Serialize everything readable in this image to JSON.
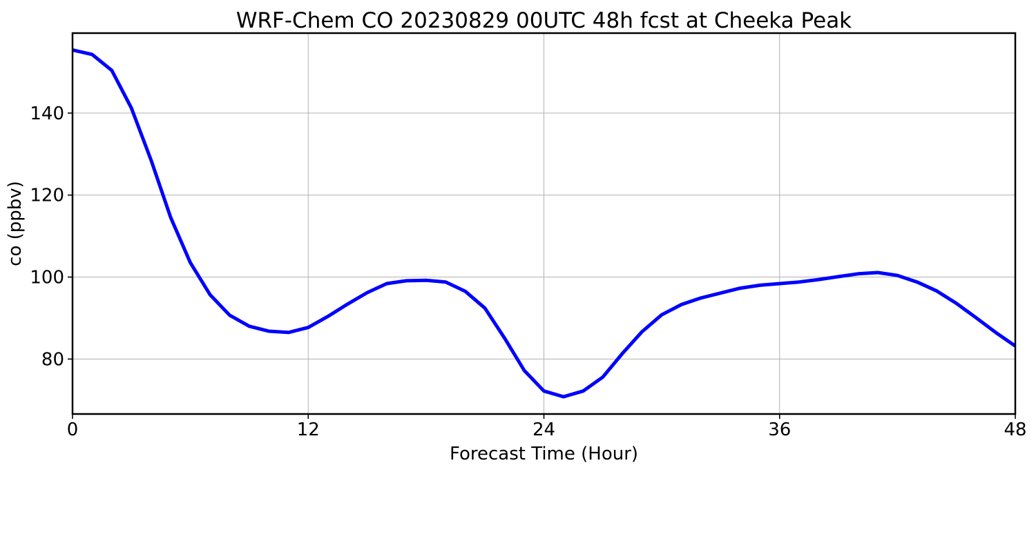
{
  "chart_data": {
    "type": "line",
    "title": "WRF-Chem CO  20230829 00UTC 48h fcst at Cheeka Peak",
    "xlabel": "Forecast Time (Hour)",
    "ylabel": "co  (ppbv)",
    "xlim": [
      0,
      48
    ],
    "ylim": [
      66.6,
      159.5
    ],
    "xticks": [
      0,
      12,
      24,
      36,
      48
    ],
    "xtick_labels": [
      "0",
      "12",
      "24",
      "36",
      "48"
    ],
    "yticks": [
      80,
      100,
      120,
      140
    ],
    "ytick_labels": [
      "80",
      "100",
      "120",
      "140"
    ],
    "grid": true,
    "legend": "none",
    "line_color": "#0000ff",
    "series": [
      {
        "x": [
          0,
          1,
          2,
          3,
          4,
          5,
          6,
          7,
          8,
          9,
          10,
          11,
          12,
          13,
          14,
          15,
          16,
          17,
          18,
          19,
          20,
          21,
          22,
          23,
          24,
          25,
          26,
          27,
          28,
          29,
          30,
          31,
          32,
          33,
          34,
          35,
          36,
          37,
          38,
          39,
          40,
          41,
          42,
          43,
          44,
          45,
          46,
          47,
          48
        ],
        "values": [
          155.4,
          154.3,
          150.4,
          141.2,
          128.5,
          114.5,
          103.5,
          95.7,
          90.7,
          88.0,
          86.8,
          86.5,
          87.7,
          90.4,
          93.4,
          96.2,
          98.4,
          99.1,
          99.2,
          98.8,
          96.5,
          92.4,
          85.1,
          77.2,
          72.2,
          70.8,
          72.2,
          75.6,
          81.4,
          86.7,
          90.8,
          93.3,
          94.9,
          96.1,
          97.3,
          98.0,
          98.4,
          98.8,
          99.4,
          100.1,
          100.8,
          101.1,
          100.4,
          98.8,
          96.6,
          93.6,
          90.1,
          86.5,
          83.2
        ]
      }
    ]
  }
}
